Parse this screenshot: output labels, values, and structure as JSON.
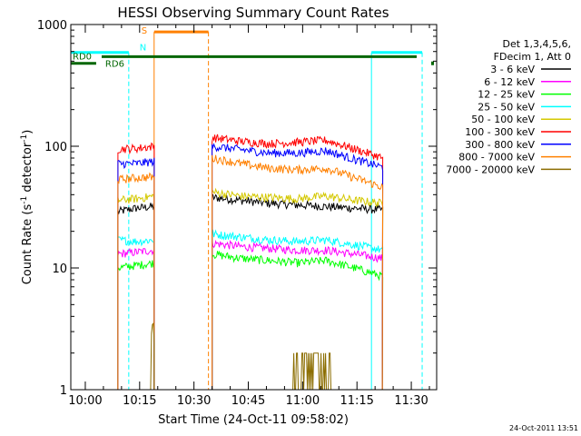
{
  "chart_data": {
    "type": "line",
    "title": "HESSI Observing Summary Count Rates",
    "xlabel": "Start Time (24-Oct-11 09:58:02)",
    "ylabel_main": "Count Rate (s",
    "ylabel_sup1": "-1",
    "ylabel_mid": " detector",
    "ylabel_sup2": "-1",
    "ylabel_end": ")",
    "y_scale": "log",
    "xlim": [
      "09:56",
      "11:37"
    ],
    "ylim": [
      1,
      1000
    ],
    "x_ticks": [
      "10:00",
      "10:15",
      "10:30",
      "10:45",
      "11:00",
      "11:15",
      "11:30"
    ],
    "x_tick_minutes": [
      600,
      615,
      630,
      645,
      660,
      675,
      690
    ],
    "y_ticks": [
      "1",
      "10",
      "100",
      "1000"
    ],
    "y_tick_values": [
      1,
      10,
      100,
      1000
    ],
    "legend_position": "right",
    "legend_header": [
      "Det 1,3,4,5,6,",
      "FDecim 1, Att 0"
    ],
    "timestamp": "24-Oct-2011 13:51",
    "flags": {
      "rd0_label": "RD0",
      "rd6_label": "RD6",
      "s_label": "S",
      "n_label": "N",
      "colors": {
        "saa": "#00ffff",
        "night": "#ff8000",
        "rd": "#006600"
      }
    },
    "saa_intervals": [
      [
        "09:56",
        "10:12"
      ],
      [
        "11:19",
        "11:33"
      ]
    ],
    "night_intervals": [
      [
        "10:19",
        "10:34"
      ]
    ],
    "rd0_interval": [
      "09:57",
      "11:36"
    ],
    "rd6_interval": [
      "09:56",
      "10:03"
    ],
    "data_segments": [
      [
        "10:09",
        "10:19"
      ],
      [
        "10:35",
        "11:22"
      ]
    ],
    "series": [
      {
        "name": "3 - 6 keV",
        "color": "#000000",
        "values": {
          "seg1": [
            29,
            31,
            32
          ],
          "seg2": [
            38,
            36,
            34,
            33,
            32,
            31,
            30
          ]
        }
      },
      {
        "name": "6 - 12 keV",
        "color": "#ff00ff",
        "values": {
          "seg1": [
            13,
            13.5,
            14
          ],
          "seg2": [
            16,
            15,
            14.5,
            14,
            14,
            13,
            12
          ]
        }
      },
      {
        "name": "12 - 25 keV",
        "color": "#00ff00",
        "values": {
          "seg1": [
            10,
            10.5,
            11
          ],
          "seg2": [
            13,
            12,
            11.5,
            11,
            11.5,
            10,
            8.5
          ]
        }
      },
      {
        "name": "25 - 50 keV",
        "color": "#00ffff",
        "values": {
          "seg1": [
            17,
            16.5,
            17
          ],
          "seg2": [
            19,
            18,
            17,
            16.5,
            17,
            15.5,
            14
          ]
        }
      },
      {
        "name": "50 - 100 keV",
        "color": "#d4c800",
        "values": {
          "seg1": [
            36,
            37,
            39
          ],
          "seg2": [
            42,
            39,
            38,
            37,
            39,
            36,
            34
          ]
        }
      },
      {
        "name": "100 - 300 keV",
        "color": "#ff0000",
        "values": {
          "seg1": [
            95,
            96,
            100
          ],
          "seg2": [
            118,
            110,
            105,
            108,
            112,
            95,
            80
          ]
        }
      },
      {
        "name": "300 - 800 keV",
        "color": "#0000ff",
        "values": {
          "seg1": [
            72,
            72,
            75
          ],
          "seg2": [
            100,
            94,
            88,
            88,
            92,
            78,
            67
          ]
        }
      },
      {
        "name": "800 - 7000 keV",
        "color": "#ff8000",
        "values": {
          "seg1": [
            53,
            55,
            56
          ],
          "seg2": [
            80,
            72,
            66,
            64,
            66,
            55,
            46
          ]
        }
      },
      {
        "name": "7000 - 20000 keV",
        "color": "#8b6d00",
        "values": {
          "seg1": [
            1,
            1,
            1.5
          ],
          "seg2": [
            1,
            1,
            1,
            1,
            2,
            1,
            1
          ]
        }
      }
    ]
  }
}
